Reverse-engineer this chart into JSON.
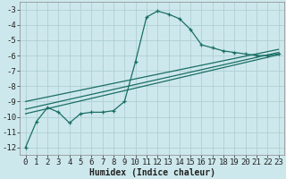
{
  "xlabel": "Humidex (Indice chaleur)",
  "bg_color": "#cde8ec",
  "grid_color": "#aecfd4",
  "line_color": "#1a6e65",
  "xlim": [
    -0.5,
    23.5
  ],
  "ylim": [
    -12.5,
    -2.5
  ],
  "yticks": [
    -12,
    -11,
    -10,
    -9,
    -8,
    -7,
    -6,
    -5,
    -4,
    -3
  ],
  "xticks": [
    0,
    1,
    2,
    3,
    4,
    5,
    6,
    7,
    8,
    9,
    10,
    11,
    12,
    13,
    14,
    15,
    16,
    17,
    18,
    19,
    20,
    21,
    22,
    23
  ],
  "curve1_x": [
    0,
    1,
    2,
    3,
    4,
    5,
    6,
    7,
    8,
    9,
    10,
    11,
    12,
    13,
    14,
    15,
    16,
    17,
    18,
    19,
    20,
    21,
    22,
    23
  ],
  "curve1_y": [
    -12.0,
    -10.3,
    -9.4,
    -9.7,
    -10.4,
    -9.8,
    -9.7,
    -9.7,
    -9.6,
    -9.0,
    -6.4,
    -3.5,
    -3.1,
    -3.3,
    -3.6,
    -4.3,
    -5.3,
    -5.5,
    -5.7,
    -5.8,
    -5.9,
    -6.0,
    -6.0,
    -5.9
  ],
  "line1_x": [
    0,
    23
  ],
  "line1_y": [
    -9.5,
    -5.8
  ],
  "line2_x": [
    0,
    23
  ],
  "line2_y": [
    -9.0,
    -5.6
  ],
  "line3_x": [
    0,
    23
  ],
  "line3_y": [
    -9.8,
    -5.95
  ],
  "font_size_xlabel": 7,
  "font_size_ticks": 6.5
}
